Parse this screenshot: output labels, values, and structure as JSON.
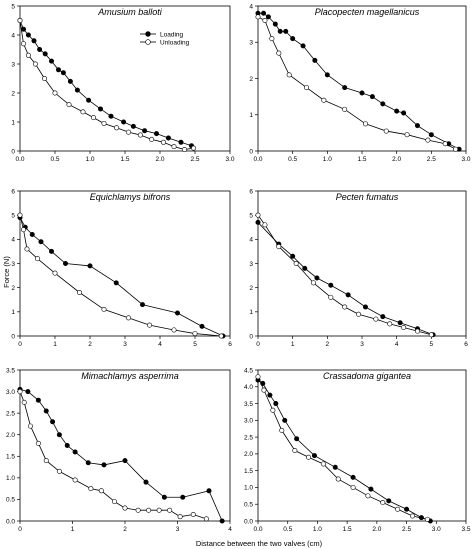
{
  "figure": {
    "ylabel": "Force (N)",
    "xlabel": "Distance between the two valves (cm)",
    "legend": [
      {
        "label": "Loading",
        "marker": "filled-circle"
      },
      {
        "label": "Unloading",
        "marker": "open-circle"
      }
    ]
  },
  "colors": {
    "line": "#000000",
    "background": "#ffffff"
  },
  "chart_data": [
    {
      "type": "line",
      "title": "Amusium balloti",
      "xlim": [
        0,
        3.0
      ],
      "ylim": [
        0,
        5
      ],
      "xticks": [
        "0.0",
        "0.5",
        "1.0",
        "1.5",
        "2.0",
        "2.5",
        "3.0"
      ],
      "yticks": [
        "0",
        "1",
        "2",
        "3",
        "4",
        "5"
      ],
      "series": [
        {
          "name": "Loading",
          "marker": "filled",
          "x": [
            0.0,
            0.05,
            0.12,
            0.2,
            0.28,
            0.36,
            0.45,
            0.55,
            0.62,
            0.72,
            0.82,
            0.98,
            1.15,
            1.3,
            1.48,
            1.62,
            1.78,
            1.95,
            2.12,
            2.3,
            2.45
          ],
          "y": [
            4.5,
            4.2,
            4.0,
            3.8,
            3.5,
            3.35,
            3.1,
            2.8,
            2.7,
            2.4,
            2.1,
            1.75,
            1.45,
            1.2,
            1.0,
            0.85,
            0.7,
            0.6,
            0.45,
            0.3,
            0.18
          ]
        },
        {
          "name": "Unloading",
          "marker": "open",
          "x": [
            0.0,
            0.05,
            0.12,
            0.22,
            0.35,
            0.5,
            0.7,
            0.9,
            1.05,
            1.2,
            1.38,
            1.55,
            1.72,
            1.88,
            2.05,
            2.2,
            2.35,
            2.48
          ],
          "y": [
            4.5,
            3.7,
            3.3,
            3.0,
            2.5,
            2.0,
            1.6,
            1.35,
            1.15,
            0.95,
            0.8,
            0.65,
            0.55,
            0.4,
            0.3,
            0.15,
            0.05,
            0.1
          ]
        }
      ]
    },
    {
      "type": "line",
      "title": "Placopecten magellanicus",
      "xlim": [
        0,
        3.0
      ],
      "ylim": [
        0,
        4
      ],
      "xticks": [
        "0.0",
        "0.5",
        "1.0",
        "1.5",
        "2.0",
        "2.5",
        "3.0"
      ],
      "yticks": [
        "0",
        "1",
        "2",
        "3",
        "4"
      ],
      "series": [
        {
          "name": "Loading",
          "marker": "filled",
          "x": [
            0.0,
            0.08,
            0.15,
            0.25,
            0.32,
            0.4,
            0.5,
            0.65,
            0.82,
            1.0,
            1.25,
            1.5,
            1.65,
            1.8,
            2.0,
            2.1,
            2.3,
            2.5,
            2.75,
            2.9
          ],
          "y": [
            3.8,
            3.8,
            3.7,
            3.5,
            3.3,
            3.3,
            3.1,
            2.9,
            2.5,
            2.1,
            1.75,
            1.6,
            1.5,
            1.3,
            1.1,
            1.05,
            0.7,
            0.45,
            0.2,
            0.05
          ]
        },
        {
          "name": "Unloading",
          "marker": "open",
          "x": [
            0.0,
            0.1,
            0.2,
            0.3,
            0.45,
            0.7,
            0.95,
            1.25,
            1.55,
            1.85,
            2.15,
            2.45,
            2.7,
            2.85
          ],
          "y": [
            3.7,
            3.6,
            3.1,
            2.7,
            2.1,
            1.75,
            1.4,
            1.15,
            0.75,
            0.55,
            0.45,
            0.3,
            0.2,
            0.05
          ]
        }
      ]
    },
    {
      "type": "line",
      "title": "Equichlamys bifrons",
      "xlim": [
        0,
        6
      ],
      "ylim": [
        0,
        6
      ],
      "xticks": [
        "0",
        "1",
        "2",
        "3",
        "4",
        "5",
        "6"
      ],
      "yticks": [
        "0",
        "1",
        "2",
        "3",
        "4",
        "5",
        "6"
      ],
      "series": [
        {
          "name": "Loading",
          "marker": "filled",
          "x": [
            0.0,
            0.15,
            0.35,
            0.6,
            0.9,
            1.3,
            2.0,
            2.75,
            3.5,
            4.5,
            5.2,
            5.8
          ],
          "y": [
            4.9,
            4.5,
            4.2,
            3.9,
            3.5,
            3.0,
            2.9,
            2.2,
            1.3,
            0.95,
            0.4,
            0.0
          ]
        },
        {
          "name": "Unloading",
          "marker": "open",
          "x": [
            0.0,
            0.1,
            0.2,
            0.5,
            1.0,
            1.7,
            2.4,
            3.1,
            3.7,
            4.4,
            5.0,
            5.75
          ],
          "y": [
            5.0,
            4.4,
            3.6,
            3.2,
            2.6,
            1.8,
            1.1,
            0.75,
            0.45,
            0.25,
            0.1,
            0.0
          ]
        }
      ]
    },
    {
      "type": "line",
      "title": "Pecten fumatus",
      "xlim": [
        0,
        6
      ],
      "ylim": [
        0,
        6
      ],
      "xticks": [
        "0",
        "1",
        "2",
        "3",
        "4",
        "5",
        "6"
      ],
      "yticks": [
        "0",
        "1",
        "2",
        "3",
        "4",
        "5",
        "6"
      ],
      "series": [
        {
          "name": "Loading",
          "marker": "filled",
          "x": [
            0.0,
            0.6,
            1.0,
            1.35,
            1.7,
            2.1,
            2.6,
            3.1,
            3.6,
            4.1,
            4.6,
            5.05
          ],
          "y": [
            4.7,
            3.8,
            3.3,
            2.8,
            2.4,
            2.1,
            1.7,
            1.2,
            0.8,
            0.55,
            0.3,
            0.05
          ]
        },
        {
          "name": "Unloading",
          "marker": "open",
          "x": [
            0.0,
            0.2,
            0.6,
            1.1,
            1.6,
            2.1,
            2.5,
            2.9,
            3.4,
            3.8,
            4.2,
            4.6,
            5.0
          ],
          "y": [
            5.0,
            4.6,
            3.7,
            3.0,
            2.2,
            1.6,
            1.2,
            0.9,
            0.7,
            0.5,
            0.35,
            0.2,
            0.05
          ]
        }
      ]
    },
    {
      "type": "line",
      "title": "Mimachlamys asperrima",
      "xlim": [
        0,
        4
      ],
      "ylim": [
        0,
        3.5
      ],
      "xticks": [
        "0",
        "1",
        "2",
        "3",
        "4"
      ],
      "yticks": [
        "0.0",
        "0.5",
        "1.0",
        "1.5",
        "2.0",
        "2.5",
        "3.0",
        "3.5"
      ],
      "series": [
        {
          "name": "Loading",
          "marker": "filled",
          "x": [
            0.0,
            0.15,
            0.35,
            0.5,
            0.62,
            0.75,
            0.9,
            1.05,
            1.3,
            1.6,
            2.0,
            2.4,
            2.75,
            3.1,
            3.6,
            3.85
          ],
          "y": [
            3.05,
            3.0,
            2.8,
            2.55,
            2.3,
            2.0,
            1.75,
            1.6,
            1.35,
            1.3,
            1.4,
            0.9,
            0.55,
            0.55,
            0.7,
            0.0
          ]
        },
        {
          "name": "Unloading",
          "marker": "open",
          "x": [
            0.0,
            0.08,
            0.2,
            0.35,
            0.5,
            0.75,
            1.05,
            1.35,
            1.55,
            1.8,
            2.0,
            2.25,
            2.45,
            2.65,
            2.85,
            3.05,
            3.3,
            3.55
          ],
          "y": [
            3.0,
            2.75,
            2.2,
            1.8,
            1.4,
            1.15,
            0.95,
            0.75,
            0.7,
            0.45,
            0.3,
            0.25,
            0.25,
            0.25,
            0.25,
            0.1,
            0.15,
            0.05
          ]
        }
      ]
    },
    {
      "type": "line",
      "title": "Crassadoma gigantea",
      "xlim": [
        0,
        3.5
      ],
      "ylim": [
        0,
        4.5
      ],
      "xticks": [
        "0.0",
        "0.5",
        "1.0",
        "1.5",
        "2.0",
        "2.5",
        "3.0",
        "3.5"
      ],
      "yticks": [
        "0.0",
        "0.5",
        "1.0",
        "1.5",
        "2.0",
        "2.5",
        "3.0",
        "3.5",
        "4.0",
        "4.5"
      ],
      "series": [
        {
          "name": "Loading",
          "marker": "filled",
          "x": [
            0.0,
            0.08,
            0.2,
            0.3,
            0.45,
            0.65,
            0.95,
            1.3,
            1.6,
            1.9,
            2.2,
            2.5,
            2.75,
            2.9
          ],
          "y": [
            4.2,
            4.1,
            3.75,
            3.5,
            3.0,
            2.45,
            1.95,
            1.6,
            1.3,
            0.95,
            0.6,
            0.35,
            0.1,
            0.0
          ]
        },
        {
          "name": "Unloading",
          "marker": "open",
          "x": [
            0.0,
            0.1,
            0.25,
            0.4,
            0.62,
            0.85,
            1.1,
            1.35,
            1.6,
            1.85,
            2.1,
            2.35,
            2.6,
            2.85
          ],
          "y": [
            4.3,
            3.9,
            3.3,
            2.7,
            2.1,
            1.9,
            1.7,
            1.25,
            1.0,
            0.75,
            0.55,
            0.35,
            0.15,
            0.05
          ]
        }
      ]
    }
  ]
}
